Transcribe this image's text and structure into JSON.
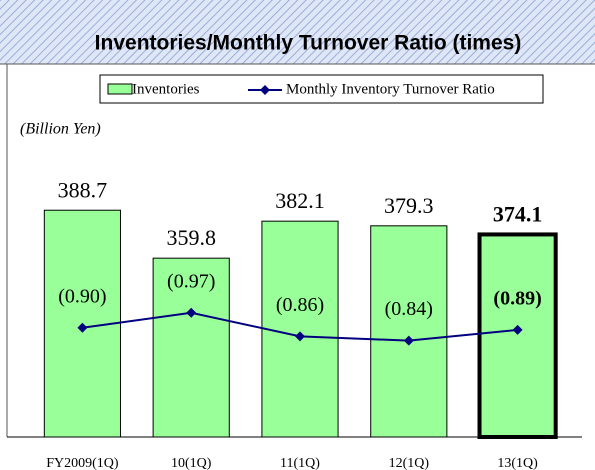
{
  "chart_data": {
    "type": "bar",
    "title": "Inventories/Monthly Turnover Ratio (times)",
    "y_label": "(Billion Yen)",
    "categories": [
      "FY2009(1Q)",
      "10(1Q)",
      "11(1Q)",
      "12(1Q)",
      "13(1Q)"
    ],
    "series": [
      {
        "name": "Inventories",
        "type": "bar",
        "color": "#99ff99",
        "values": [
          388.7,
          359.8,
          382.1,
          379.3,
          374.1
        ]
      },
      {
        "name": "Monthly Inventory Turnover Ratio",
        "type": "line",
        "axis": "y2",
        "color": "#000080",
        "values": [
          0.9,
          0.97,
          0.86,
          0.84,
          0.89
        ],
        "value_labels": [
          "(0.90)",
          "(0.97)",
          "(0.86)",
          "(0.84)",
          "(0.89)"
        ]
      }
    ],
    "highlight": 4,
    "ylim": [
      252,
      425
    ],
    "y2lim": [
      0.39,
      1.73
    ],
    "legend": "top"
  }
}
